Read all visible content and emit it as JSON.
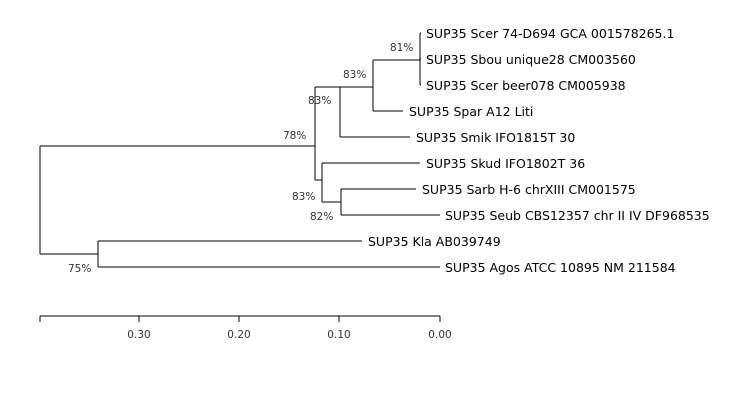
{
  "tree": {
    "taxa": [
      {
        "id": "scer74",
        "label": "SUP35 Scer 74-D694 GCA 001578265.1"
      },
      {
        "id": "sbou",
        "label": "SUP35 Sbou unique28 CM003560"
      },
      {
        "id": "scerbeer",
        "label": "SUP35 Scer beer078 CM005938"
      },
      {
        "id": "spar",
        "label": "SUP35 Spar A12 Liti"
      },
      {
        "id": "smik",
        "label": "SUP35 Smik IFO1815T 30"
      },
      {
        "id": "skud",
        "label": "SUP35 Skud IFO1802T 36"
      },
      {
        "id": "sarb",
        "label": "SUP35 Sarb H-6 chrXIII CM001575"
      },
      {
        "id": "seub",
        "label": "SUP35 Seub CBS12357 chr II IV DF968535"
      },
      {
        "id": "kla",
        "label": "SUP35 Kla AB039749"
      },
      {
        "id": "agos",
        "label": "SUP35 Agos ATCC 10895 NM 211584"
      }
    ],
    "bootstrap": [
      {
        "id": "n_scer_sbou",
        "value": "81%"
      },
      {
        "id": "n_scer_group",
        "value": "83%"
      },
      {
        "id": "n_spar",
        "value": "83%"
      },
      {
        "id": "n_root_ingroup",
        "value": "78%"
      },
      {
        "id": "n_skud",
        "value": "83%"
      },
      {
        "id": "n_sarb_seub",
        "value": "82%"
      },
      {
        "id": "n_kla_agos",
        "value": "75%"
      }
    ]
  },
  "scale": {
    "ticks": [
      "0.30",
      "0.20",
      "0.10",
      "0.00"
    ]
  }
}
